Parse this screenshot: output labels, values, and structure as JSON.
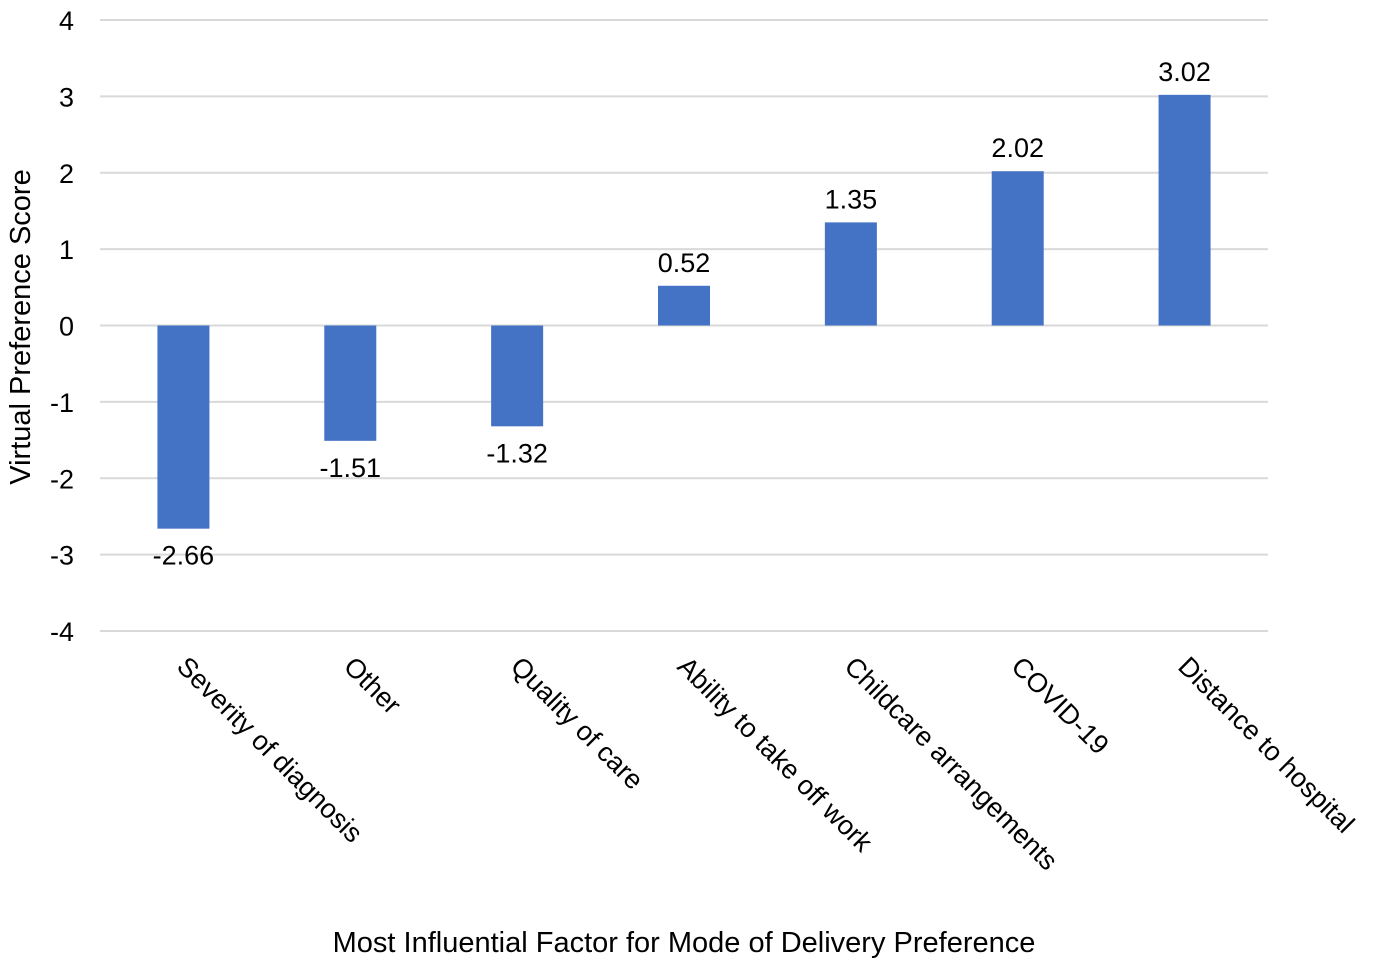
{
  "chart_data": {
    "type": "bar",
    "title": "",
    "xlabel": "Most Influential Factor for Mode of Delivery Preference",
    "ylabel": "Virtual Preference  Score",
    "categories": [
      "Severity of diagnosis",
      "Other",
      "Quality of care",
      "Ability to take off work",
      "Childcare arrangements",
      "COVID-19",
      "Distance to hospital"
    ],
    "values": [
      -2.66,
      -1.51,
      -1.32,
      0.52,
      1.35,
      2.02,
      3.02
    ],
    "data_labels": [
      "-2.66",
      "-1.51",
      "-1.32",
      "0.52",
      "1.35",
      "2.02",
      "3.02"
    ],
    "ylim": [
      -4,
      4
    ],
    "yticks": [
      4,
      3,
      2,
      1,
      0,
      -1,
      -2,
      -3,
      -4
    ],
    "ytick_labels": [
      "4",
      "3",
      "2",
      "1",
      "0",
      "-1",
      "-2",
      "-3",
      "-4"
    ],
    "grid": true,
    "legend": "none",
    "colors": {
      "bar": "#4472c4",
      "grid": "#d9d9d9"
    }
  }
}
